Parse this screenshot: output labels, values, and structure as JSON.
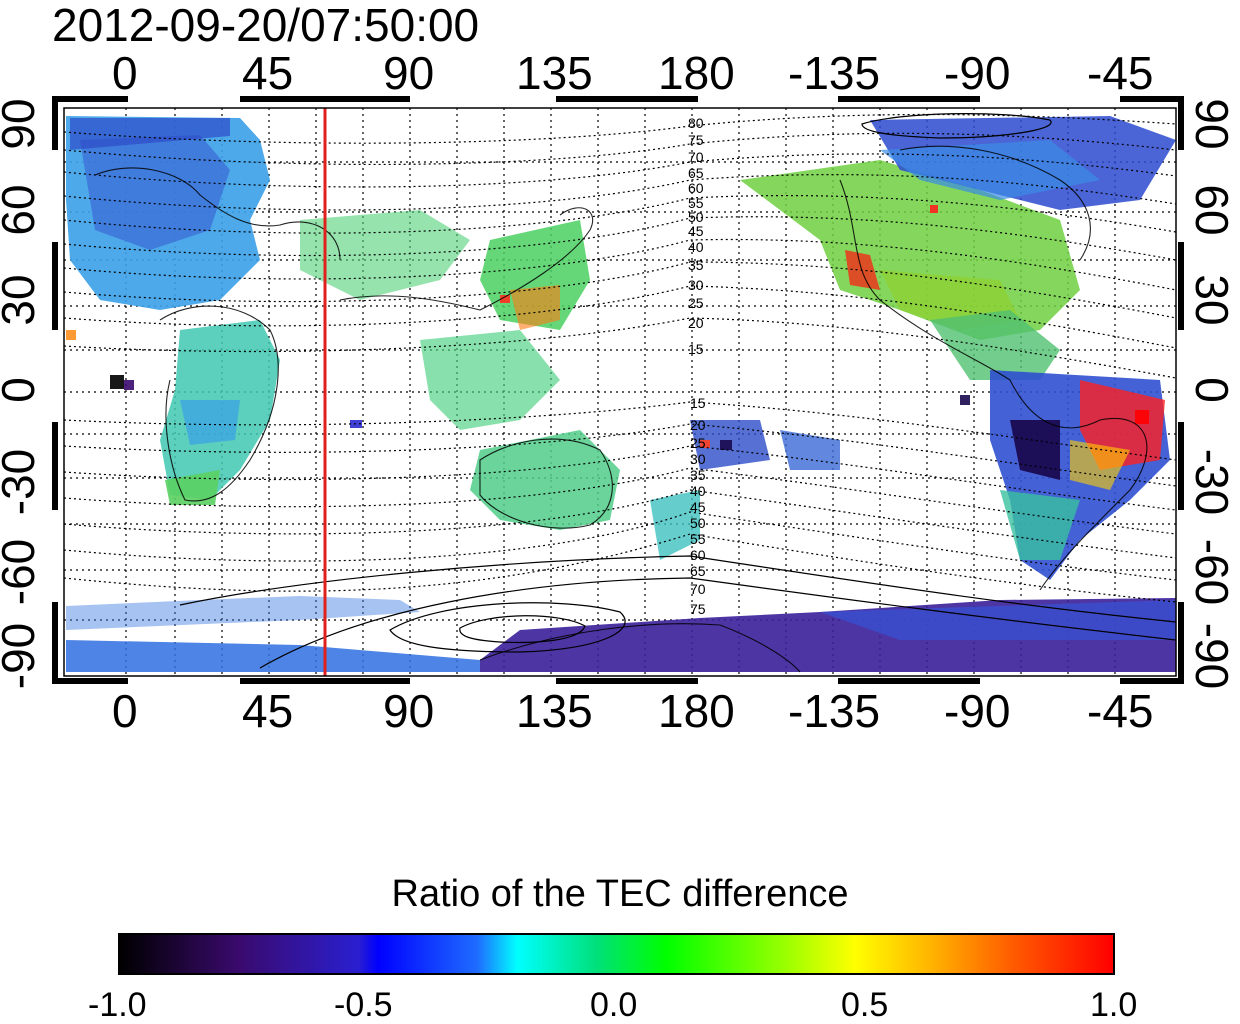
{
  "title": "2012-09-20/07:50:00",
  "x_ticks": [
    "0",
    "45",
    "90",
    "135",
    "180",
    "-135",
    "-90",
    "-45"
  ],
  "y_ticks": [
    "90",
    "60",
    "30",
    "0",
    "-30",
    "-60",
    "-90"
  ],
  "contour_labels_north": [
    "80",
    "75",
    "70",
    "65",
    "60",
    "55",
    "50",
    "45",
    "40",
    "35",
    "30",
    "25",
    "20",
    "15"
  ],
  "contour_labels_south": [
    "15",
    "20",
    "25",
    "30",
    "35",
    "40",
    "45",
    "50",
    "55",
    "60",
    "65",
    "70",
    "75"
  ],
  "colorbar": {
    "title": "Ratio of the TEC difference",
    "ticks": [
      "-1.0",
      "-0.5",
      "0.0",
      "0.5",
      "1.0"
    ]
  },
  "marker_line_color": "#e0201c"
}
